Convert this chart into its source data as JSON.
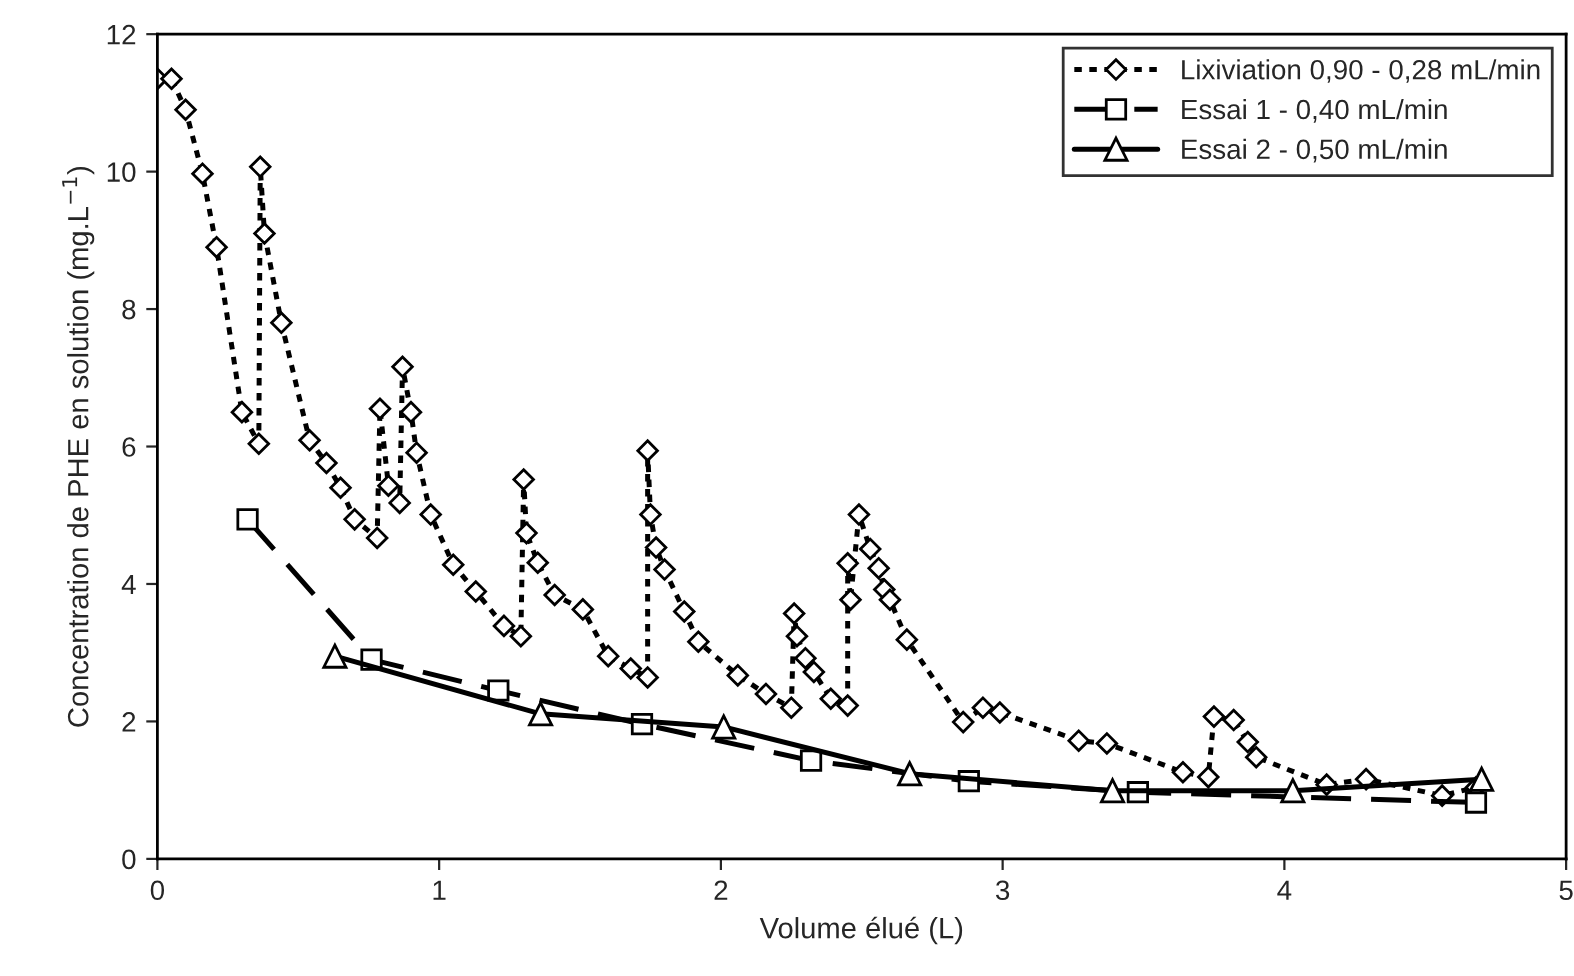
{
  "chart_data": {
    "type": "line",
    "xlabel": "Volume élué (L)",
    "ylabel": "Concentration de PHE en solution (mg.L$^{−1}$)",
    "xlim": [
      0,
      5
    ],
    "xticks": [
      0,
      1,
      2,
      3,
      4,
      5
    ],
    "ylim": [
      0,
      12
    ],
    "yticks": [
      0,
      2,
      4,
      6,
      8,
      10,
      12
    ],
    "grid": false,
    "legend": "top right",
    "series": [
      {
        "name": "Lixiviation 0,90 - 0,28 mL/min",
        "color": "#000000",
        "marker": "diamond",
        "line_style": "dotted",
        "x": [
          0.0,
          0.05,
          0.1,
          0.16,
          0.21,
          0.3,
          0.36,
          0.365,
          0.38,
          0.44,
          0.54,
          0.6,
          0.65,
          0.7,
          0.78,
          0.79,
          0.82,
          0.86,
          0.87,
          0.9,
          0.92,
          0.97,
          1.05,
          1.13,
          1.23,
          1.29,
          1.3,
          1.31,
          1.35,
          1.41,
          1.51,
          1.6,
          1.68,
          1.74,
          1.74,
          1.75,
          1.77,
          1.8,
          1.87,
          1.92,
          2.06,
          2.16,
          2.25,
          2.26,
          2.27,
          2.3,
          2.33,
          2.39,
          2.45,
          2.45,
          2.46,
          2.49,
          2.53,
          2.56,
          2.58,
          2.6,
          2.66,
          2.86,
          2.93,
          2.99,
          3.27,
          3.37,
          3.64,
          3.73,
          3.75,
          3.82,
          3.87,
          3.9,
          4.15,
          4.29,
          4.56,
          4.68
        ],
        "values": [
          11.35,
          11.35,
          10.9,
          9.97,
          8.9,
          6.5,
          6.04,
          10.07,
          9.1,
          7.8,
          6.09,
          5.76,
          5.4,
          4.94,
          4.67,
          6.55,
          5.43,
          5.18,
          7.16,
          6.5,
          5.91,
          5.01,
          4.28,
          3.89,
          3.39,
          3.24,
          5.52,
          4.74,
          4.31,
          3.84,
          3.63,
          2.95,
          2.77,
          2.64,
          5.94,
          5.01,
          4.53,
          4.21,
          3.6,
          3.16,
          2.67,
          2.4,
          2.2,
          3.57,
          3.24,
          2.92,
          2.72,
          2.33,
          2.23,
          4.3,
          3.77,
          5.01,
          4.51,
          4.23,
          3.92,
          3.77,
          3.19,
          1.99,
          2.2,
          2.13,
          1.72,
          1.68,
          1.26,
          1.19,
          2.07,
          2.02,
          1.7,
          1.48,
          1.08,
          1.16,
          0.92,
          1.04
        ]
      },
      {
        "name": "Essai 1 - 0,40 mL/min",
        "color": "#000000",
        "marker": "square",
        "line_style": "dashed",
        "x": [
          0.32,
          0.76,
          1.21,
          1.72,
          2.32,
          2.88,
          3.48,
          4.68
        ],
        "values": [
          4.94,
          2.9,
          2.45,
          1.96,
          1.43,
          1.13,
          0.97,
          0.82
        ]
      },
      {
        "name": "Essai 2 - 0,50 mL/min",
        "color": "#000000",
        "marker": "triangle",
        "line_style": "solid",
        "x": [
          0.63,
          1.36,
          2.01,
          2.67,
          3.39,
          4.03,
          4.7
        ],
        "values": [
          2.95,
          2.11,
          1.92,
          1.24,
          0.99,
          0.99,
          1.16
        ]
      }
    ]
  }
}
